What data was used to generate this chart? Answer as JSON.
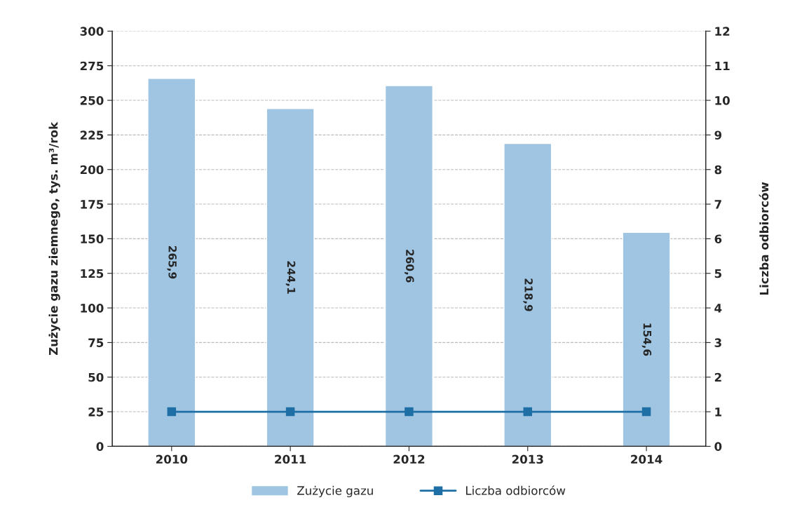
{
  "chart_data": {
    "type": "bar",
    "categories": [
      "2010",
      "2011",
      "2012",
      "2013",
      "2014"
    ],
    "ylabel": "Zużycie gazu ziemnego, tys. m³/rok",
    "y2label": "Liczba odbiorców",
    "series": [
      {
        "name": "Zużycie gazu",
        "color": "#9fc5e2",
        "values": [
          265.9,
          244.1,
          260.6,
          218.9,
          154.6
        ],
        "value_labels": [
          "265,9",
          "244,1",
          "260,6",
          "218,9",
          "154,6"
        ]
      },
      {
        "name": "Liczba odbiorców",
        "type": "line",
        "axis": "y2",
        "color": "#1d6fa5",
        "values": [
          1,
          1,
          1,
          1,
          1
        ]
      }
    ],
    "ylim": [
      0,
      300
    ],
    "yticks": [
      0,
      25,
      50,
      75,
      100,
      125,
      150,
      175,
      200,
      225,
      250,
      275,
      300
    ],
    "y2lim": [
      0,
      12
    ],
    "y2ticks": [
      0,
      1,
      2,
      3,
      4,
      5,
      6,
      7,
      8,
      9,
      10,
      11,
      12
    ],
    "grid": "y",
    "legend": "bottom",
    "marker": "square",
    "line_style": "solid"
  }
}
